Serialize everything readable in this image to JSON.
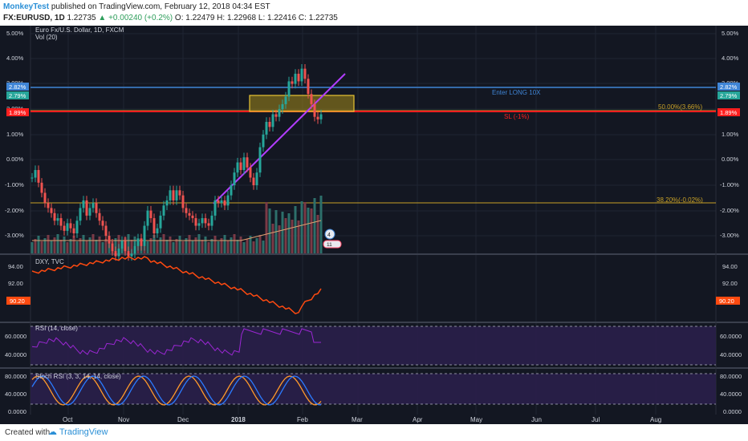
{
  "header": {
    "author": "MonkeyTest",
    "published": " published on TradingView.com, February 12, 2018 04:34 EST",
    "symbol": "FX:EURUSD, 1D",
    "last": "1.22735",
    "change": "▲ +0.00240 (+0.2%)",
    "ohlc": "O: 1.22479  H: 1.22968  L: 1.22416  C: 1.22735"
  },
  "main_pane": {
    "title": "Euro Fx/U.S. Dollar, 1D, FXCM",
    "vol_label": "Vol (20)",
    "y_ticks": [
      "5.00%",
      "4.00%",
      "3.00%",
      "2.00%",
      "1.00%",
      "0.00%",
      "-1.00%",
      "-2.00%",
      "-3.00%"
    ],
    "price_tags": {
      "blue": "2.82%",
      "green": "2.79%",
      "red": "1.89%"
    },
    "annotations": {
      "long": "Enter LONG 10X",
      "fib50": "50.00%(3.66%)",
      "sl": "SL (-1%)",
      "fib38": "38.20%(-0.02%)"
    },
    "badge_count": "4",
    "badge2": "11"
  },
  "dxy_pane": {
    "title": "DXY, TVC",
    "y_ticks": [
      "94.00",
      "92.00"
    ],
    "tag": "90.20"
  },
  "rsi_pane": {
    "title": "RSI (14, close)",
    "y_ticks": [
      "60.0000",
      "40.0000"
    ]
  },
  "stoch_pane": {
    "title": "Stoch RSI (3, 3, 14, 14, close)",
    "y_ticks": [
      "80.0000",
      "40.0000",
      "0.0000"
    ]
  },
  "x_axis": {
    "labels": [
      "Oct",
      "Nov",
      "Dec",
      "2018",
      "Feb",
      "Mar",
      "Apr",
      "May",
      "Jun",
      "Jul",
      "Aug"
    ]
  },
  "footer": {
    "created_with": "Created with",
    "brand": "TradingView"
  },
  "colors": {
    "up": "#26a69a",
    "down": "#ef5350",
    "bg": "#131722",
    "purple": "#9b27d3",
    "dxy": "#ff4a10"
  }
}
